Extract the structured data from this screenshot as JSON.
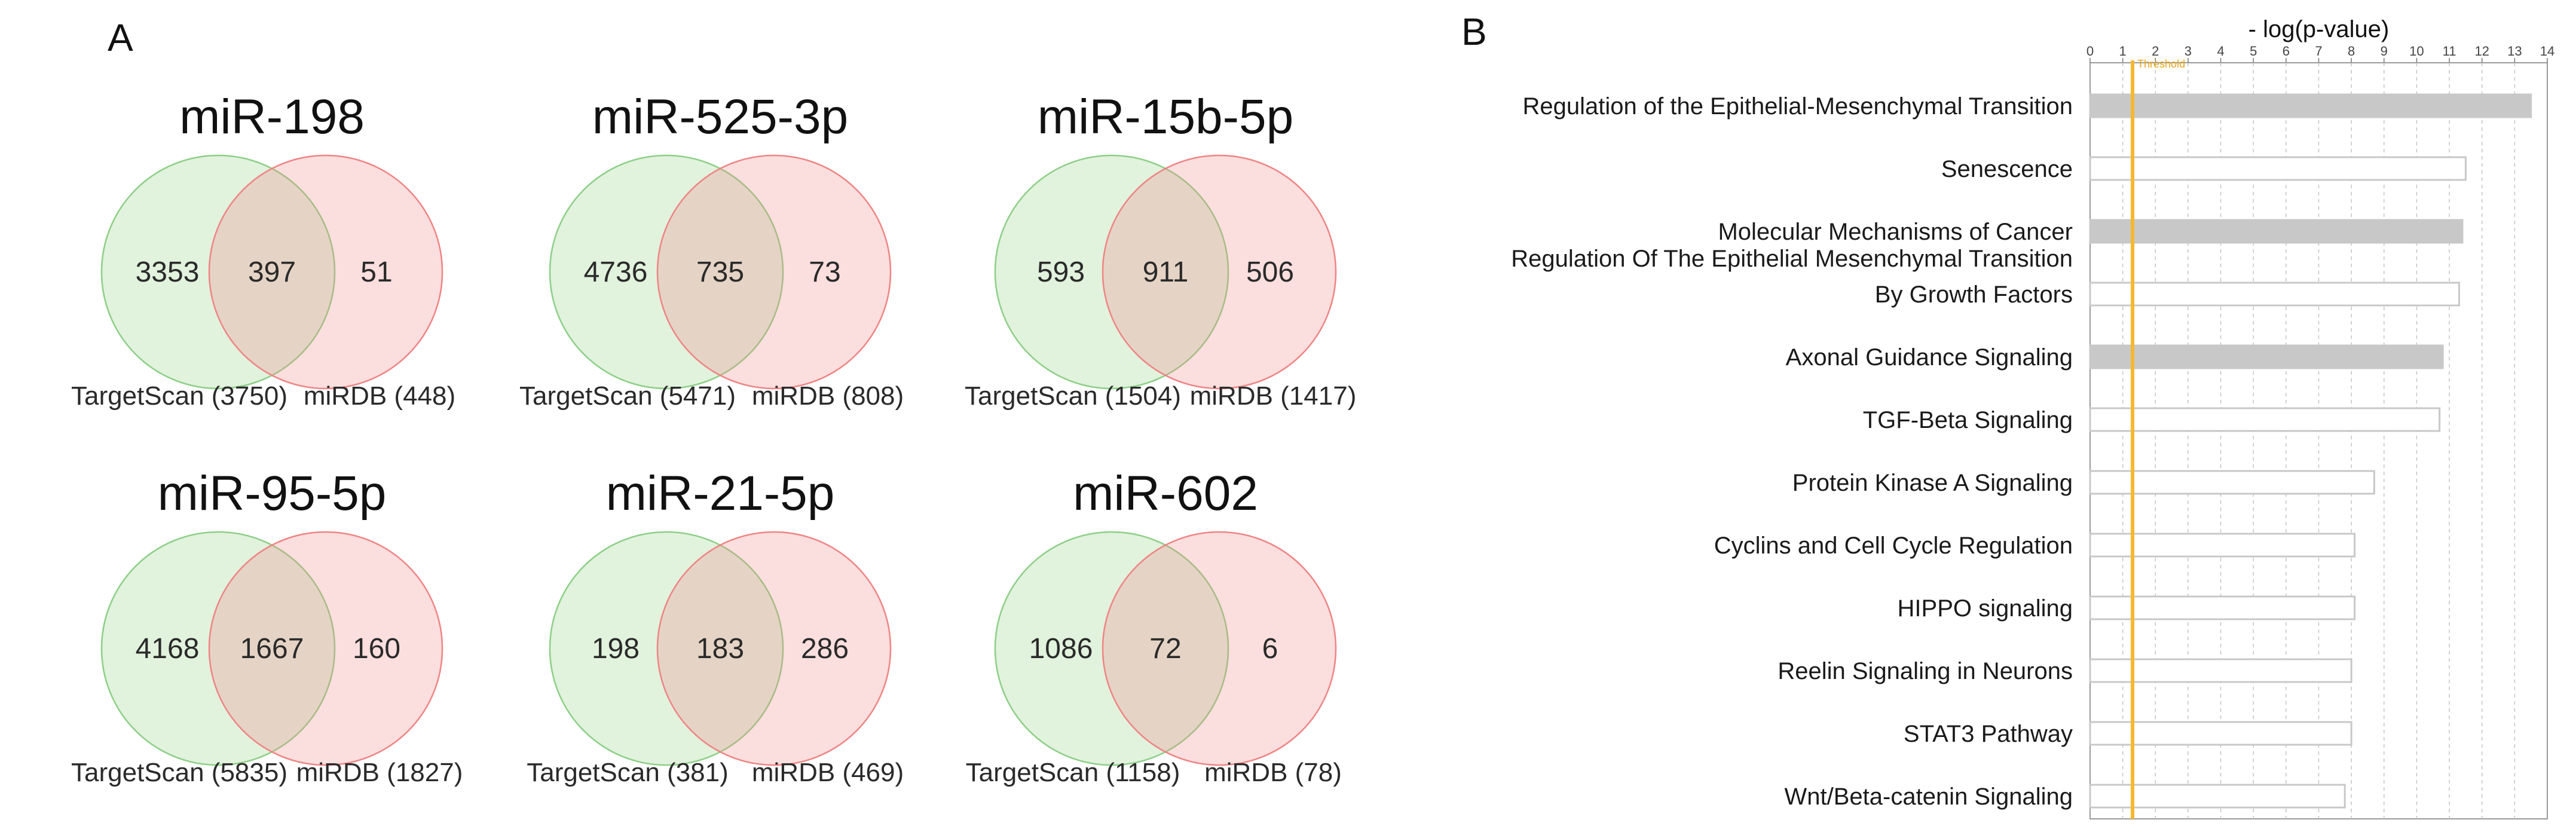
{
  "panels": {
    "a": "A",
    "b": "B"
  },
  "venn_colors": {
    "left": "#92cf84",
    "right": "#f08a8a",
    "left_stroke": "#8ccf86",
    "right_stroke": "#ef8484"
  },
  "venn": [
    {
      "title": "miR-198",
      "left": "3353",
      "overlap": "397",
      "right": "51",
      "left_set": "TargetScan (3750)",
      "right_set": "miRDB (448)"
    },
    {
      "title": "miR-525-3p",
      "left": "4736",
      "overlap": "735",
      "right": "73",
      "left_set": "TargetScan (5471)",
      "right_set": "miRDB (808)"
    },
    {
      "title": "miR-15b-5p",
      "left": "593",
      "overlap": "911",
      "right": "506",
      "left_set": "TargetScan (1504)",
      "right_set": "miRDB (1417)"
    },
    {
      "title": "miR-95-5p",
      "left": "4168",
      "overlap": "1667",
      "right": "160",
      "left_set": "TargetScan (5835)",
      "right_set": "miRDB (1827)"
    },
    {
      "title": "miR-21-5p",
      "left": "198",
      "overlap": "183",
      "right": "286",
      "left_set": "TargetScan (381)",
      "right_set": "miRDB (469)"
    },
    {
      "title": "miR-602",
      "left": "1086",
      "overlap": "72",
      "right": "6",
      "left_set": "TargetScan (1158)",
      "right_set": "miRDB (78)"
    }
  ],
  "chart_data": {
    "type": "bar",
    "orientation": "horizontal",
    "title": "",
    "xlabel": "- log(p-value)",
    "ylabel": "",
    "xlim": [
      0,
      14
    ],
    "xticks": [
      "0",
      "1",
      "2",
      "3",
      "4",
      "5",
      "6",
      "7",
      "8",
      "9",
      "10",
      "11",
      "12",
      "13",
      "14"
    ],
    "threshold": {
      "value": 1.3,
      "label": "Threshold",
      "color": "#f5b82e"
    },
    "bar_colors": {
      "filled": "#c8c8c8",
      "outline": "#c8c8c8"
    },
    "categories": [
      "Regulation of the Epithelial-Mesenchymal Transition",
      "Senescence",
      "Molecular Mechanisms of Cancer",
      "Regulation Of The Epithelial Mesenchymal Transition By Growth Factors",
      "Axonal Guidance Signaling",
      "TGF-Beta Signaling",
      "Protein Kinase A Signaling",
      "Cyclins and Cell Cycle Regulation",
      "HIPPO signaling",
      "Reelin Signaling in Neurons",
      "STAT3 Pathway",
      "Wnt/Beta-catenin Signaling"
    ],
    "category_lines": [
      [
        "Regulation of the Epithelial-Mesenchymal Transition"
      ],
      [
        "Senescence"
      ],
      [
        "Molecular Mechanisms of Cancer"
      ],
      [
        "Regulation Of The Epithelial Mesenchymal Transition",
        "By Growth Factors"
      ],
      [
        "Axonal Guidance Signaling"
      ],
      [
        "TGF-Beta Signaling"
      ],
      [
        "Protein Kinase A Signaling"
      ],
      [
        "Cyclins and Cell Cycle Regulation"
      ],
      [
        "HIPPO signaling"
      ],
      [
        "Reelin Signaling in Neurons"
      ],
      [
        "STAT3 Pathway"
      ],
      [
        "Wnt/Beta-catenin Signaling"
      ]
    ],
    "values": [
      13.5,
      11.5,
      11.4,
      11.3,
      10.8,
      10.7,
      8.7,
      8.1,
      8.1,
      8.0,
      8.0,
      7.8
    ],
    "filled": [
      true,
      false,
      true,
      false,
      true,
      false,
      false,
      false,
      false,
      false,
      false,
      false
    ]
  }
}
